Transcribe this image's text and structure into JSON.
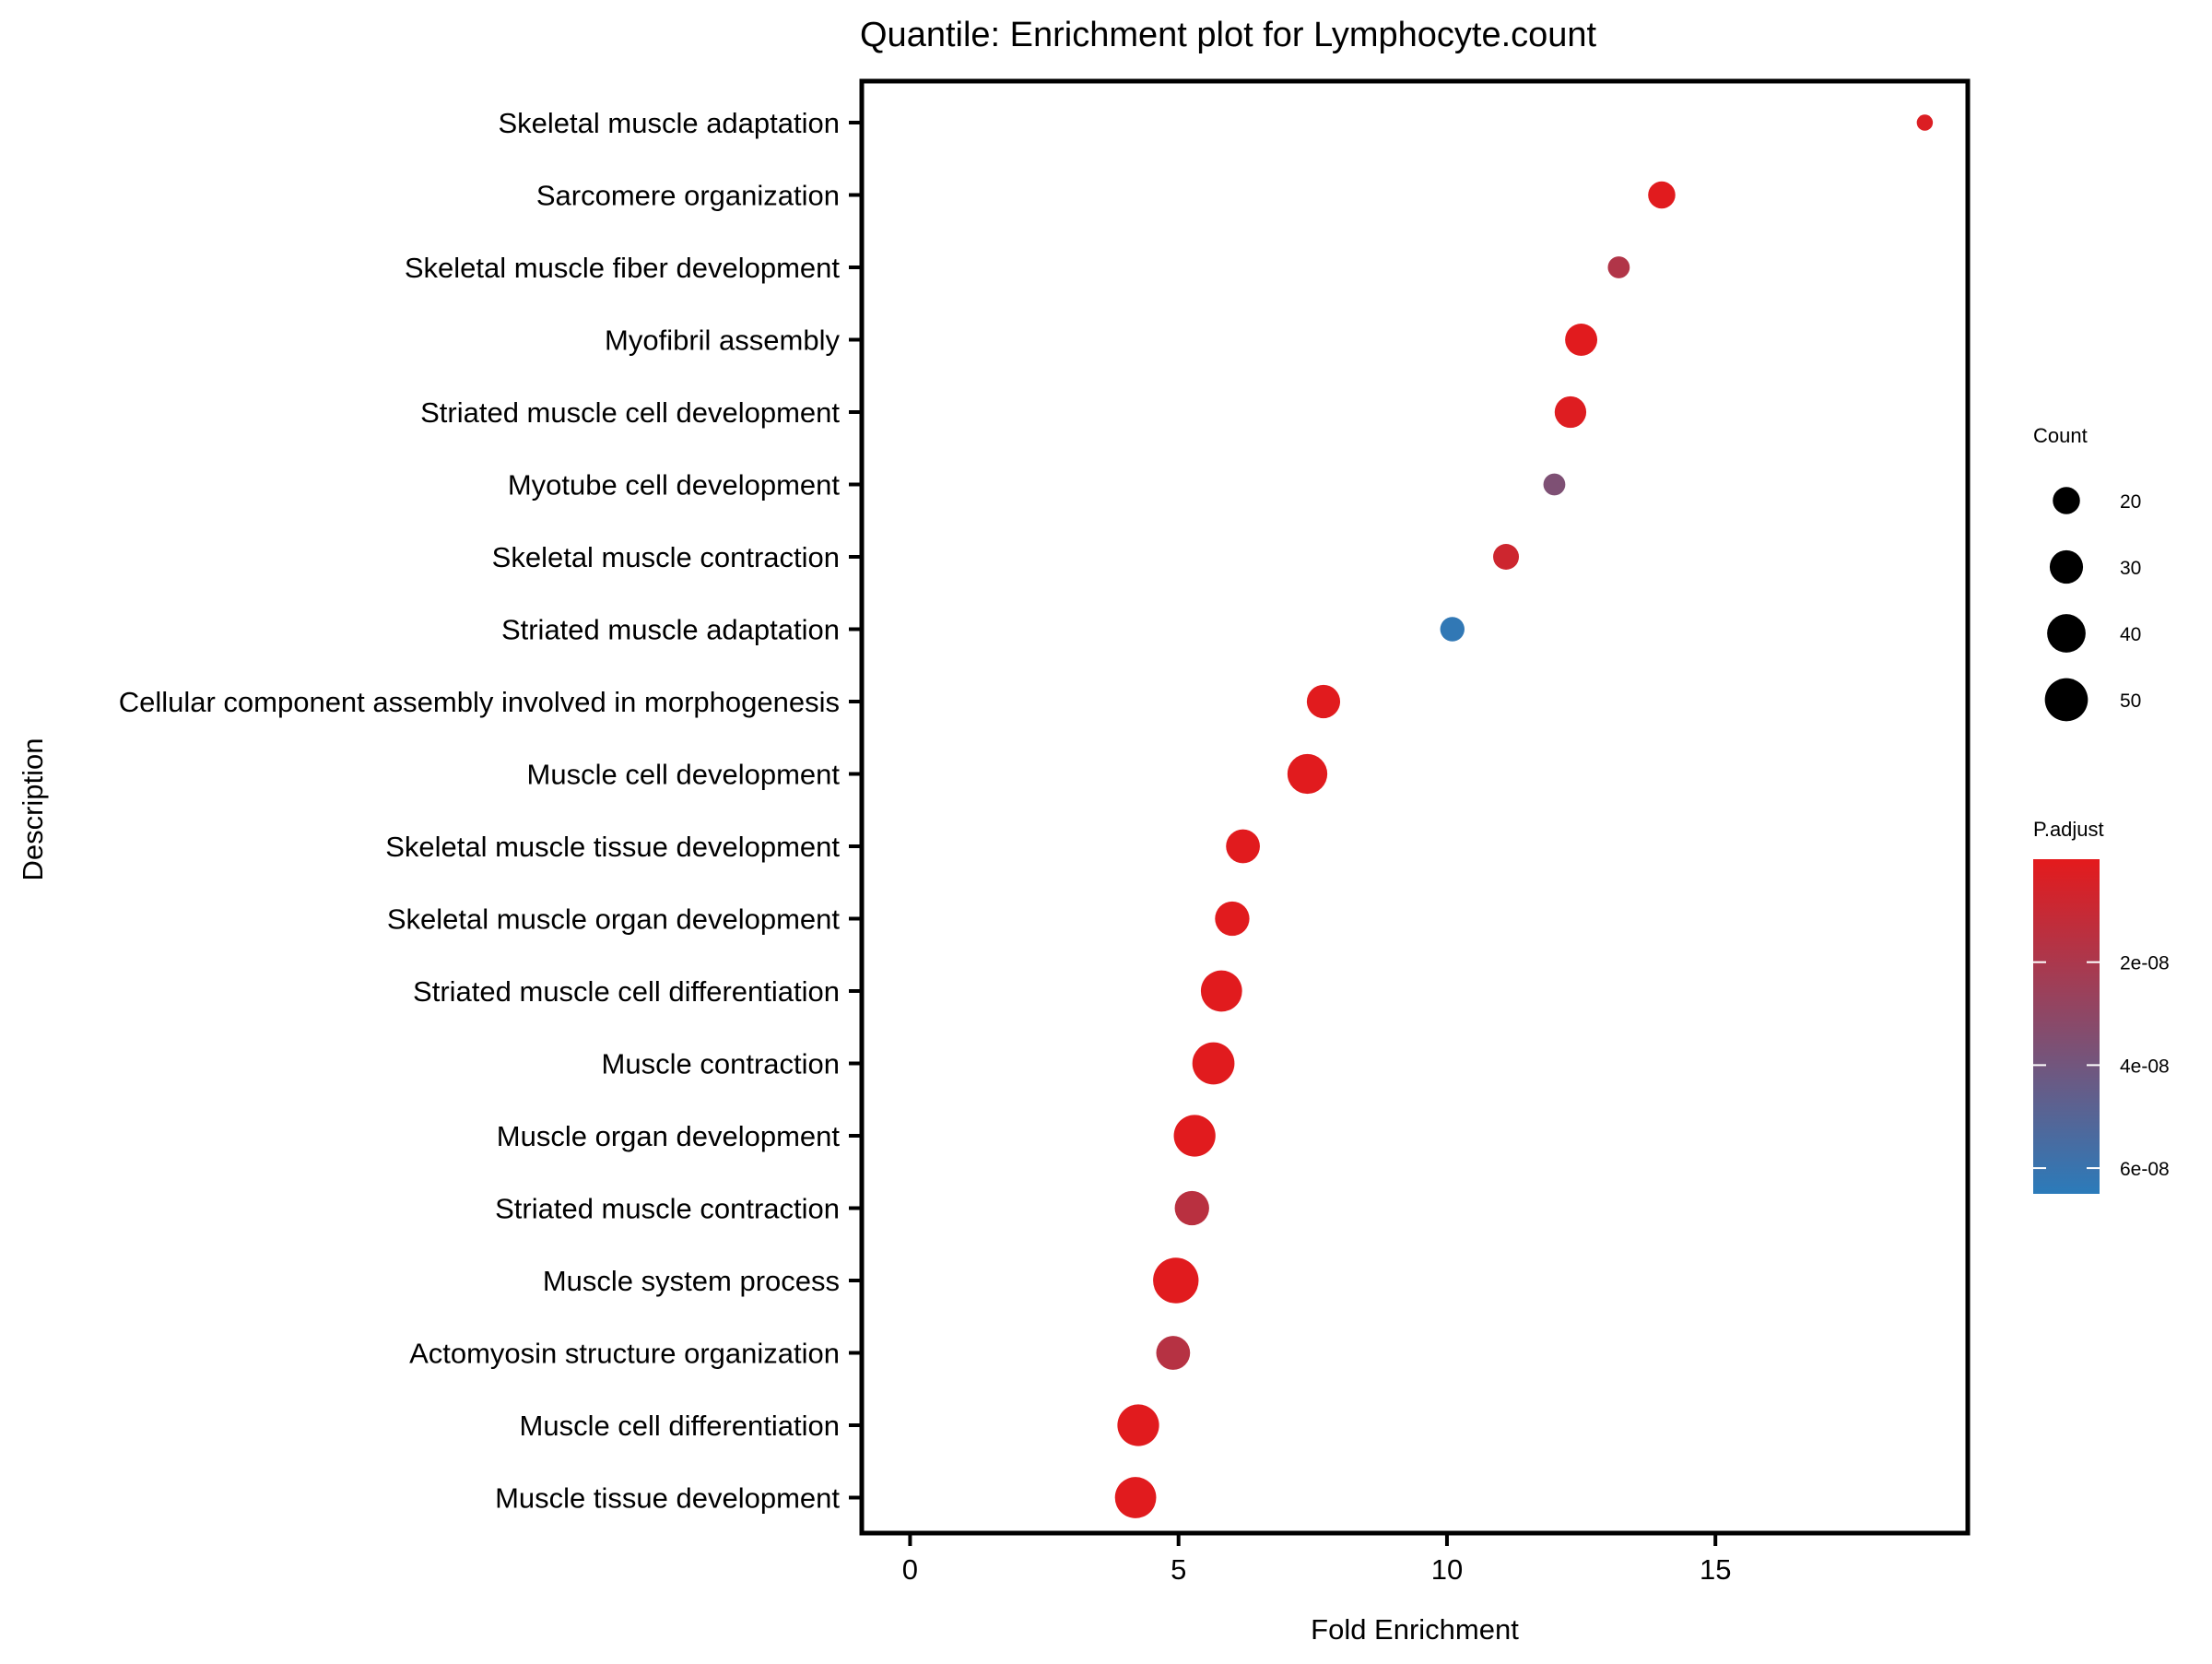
{
  "chart_data": {
    "type": "scatter",
    "title": "Quantile: Enrichment plot for Lymphocyte.count",
    "xlabel": "Fold Enrichment",
    "ylabel": "Description",
    "xlim": [
      -0.9,
      19.7
    ],
    "xticks": [
      0,
      5,
      10,
      15
    ],
    "grid": false,
    "categories": [
      "Skeletal muscle adaptation",
      "Sarcomere organization",
      "Skeletal muscle fiber development",
      "Myofibril assembly",
      "Striated muscle cell development",
      "Myotube cell development",
      "Skeletal muscle contraction",
      "Striated muscle adaptation",
      "Cellular component assembly involved in morphogenesis",
      "Muscle cell development",
      "Skeletal muscle tissue development",
      "Skeletal muscle organ development",
      "Striated muscle cell differentiation",
      "Muscle contraction",
      "Muscle organ development",
      "Striated muscle contraction",
      "Muscle system process",
      "Actomyosin structure organization",
      "Muscle cell differentiation",
      "Muscle tissue development"
    ],
    "points": [
      {
        "term": "Skeletal muscle adaptation",
        "fold_enrichment": 18.9,
        "count": 7,
        "p_adjust": 3e-09
      },
      {
        "term": "Sarcomere organization",
        "fold_enrichment": 14.0,
        "count": 20,
        "p_adjust": 1e-09
      },
      {
        "term": "Skeletal muscle fiber development",
        "fold_enrichment": 13.2,
        "count": 13,
        "p_adjust": 1.8e-08
      },
      {
        "term": "Myofibril assembly",
        "fold_enrichment": 12.5,
        "count": 28,
        "p_adjust": 1e-09
      },
      {
        "term": "Striated muscle cell development",
        "fold_enrichment": 12.3,
        "count": 27,
        "p_adjust": 2e-09
      },
      {
        "term": "Myotube cell development",
        "fold_enrichment": 12.0,
        "count": 13,
        "p_adjust": 3.6e-08
      },
      {
        "term": "Skeletal muscle contraction",
        "fold_enrichment": 11.1,
        "count": 18,
        "p_adjust": 8e-09
      },
      {
        "term": "Striated muscle adaptation",
        "fold_enrichment": 10.1,
        "count": 16,
        "p_adjust": 6.3e-08
      },
      {
        "term": "Cellular component assembly involved in morphogenesis",
        "fold_enrichment": 7.7,
        "count": 30,
        "p_adjust": 1e-09
      },
      {
        "term": "Muscle cell development",
        "fold_enrichment": 7.4,
        "count": 43,
        "p_adjust": 1e-09
      },
      {
        "term": "Skeletal muscle tissue development",
        "fold_enrichment": 6.2,
        "count": 31,
        "p_adjust": 1e-09
      },
      {
        "term": "Skeletal muscle organ development",
        "fold_enrichment": 6.0,
        "count": 32,
        "p_adjust": 1e-09
      },
      {
        "term": "Striated muscle cell differentiation",
        "fold_enrichment": 5.8,
        "count": 46,
        "p_adjust": 1e-09
      },
      {
        "term": "Muscle contraction",
        "fold_enrichment": 5.65,
        "count": 48,
        "p_adjust": 1e-09
      },
      {
        "term": "Muscle organ development",
        "fold_enrichment": 5.3,
        "count": 47,
        "p_adjust": 1e-09
      },
      {
        "term": "Striated muscle contraction",
        "fold_enrichment": 5.25,
        "count": 32,
        "p_adjust": 1.5e-08
      },
      {
        "term": "Muscle system process",
        "fold_enrichment": 4.95,
        "count": 56,
        "p_adjust": 1e-09
      },
      {
        "term": "Actomyosin structure organization",
        "fold_enrichment": 4.9,
        "count": 31,
        "p_adjust": 1.6e-08
      },
      {
        "term": "Muscle cell differentiation",
        "fold_enrichment": 4.25,
        "count": 47,
        "p_adjust": 1e-09
      },
      {
        "term": "Muscle tissue development",
        "fold_enrichment": 4.2,
        "count": 46,
        "p_adjust": 1e-09
      }
    ],
    "size_legend": {
      "title": "Count",
      "breaks": [
        20,
        30,
        40,
        50
      ],
      "labels": [
        "20",
        "30",
        "40",
        "50"
      ]
    },
    "color_legend": {
      "title": "P.adjust",
      "range": [
        0,
        6.5e-08
      ],
      "breaks": [
        2e-08,
        4e-08,
        6e-08
      ],
      "labels": [
        "2e-08",
        "4e-08",
        "6e-08"
      ],
      "low_color": "#e41a1c",
      "high_color": "#2b7bba"
    },
    "legend_position": "right"
  }
}
